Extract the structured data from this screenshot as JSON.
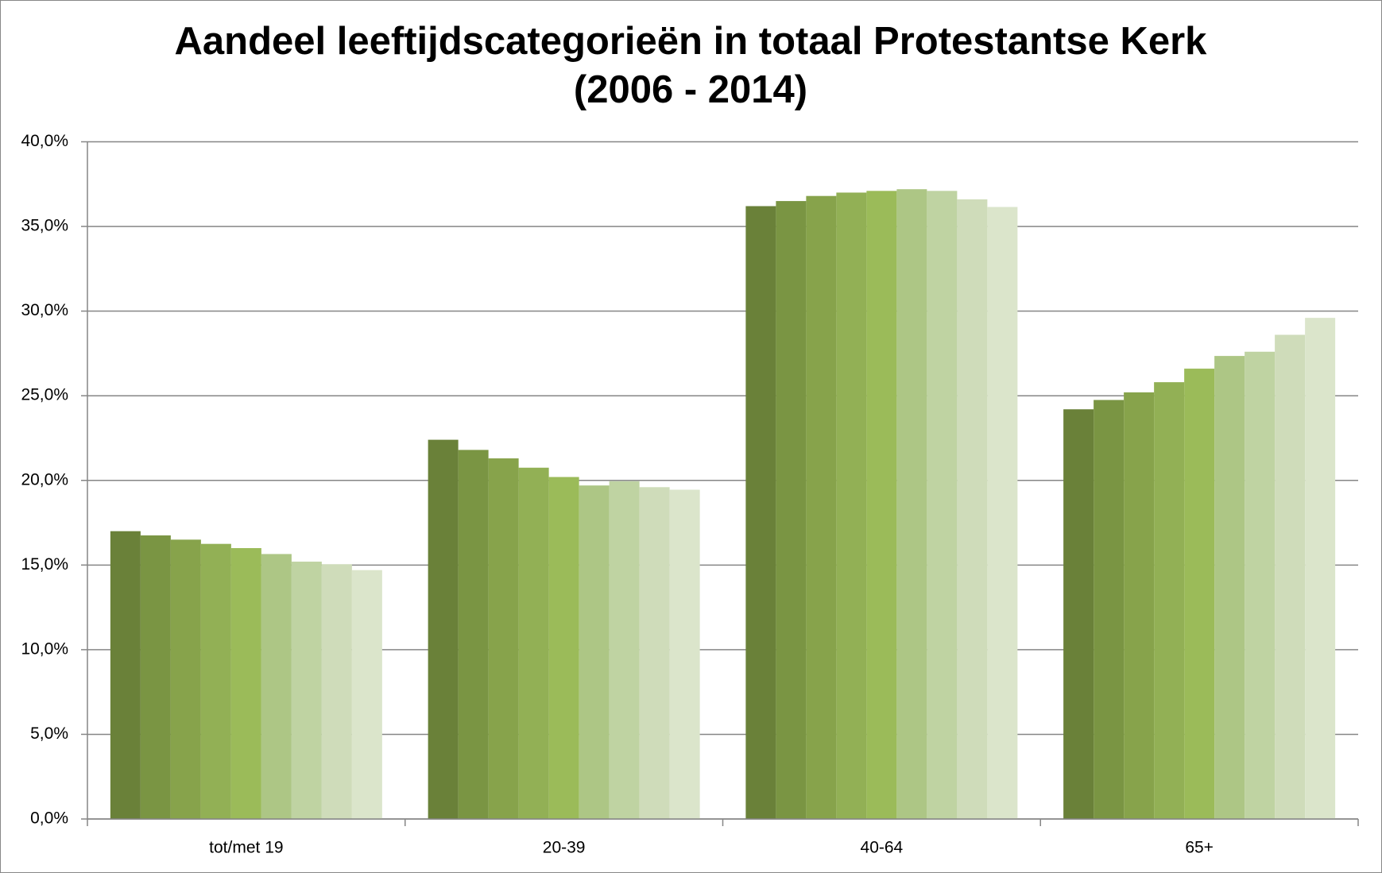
{
  "chart_data": {
    "type": "bar",
    "title": "Aandeel leeftijdscategorieën in totaal Protestantse Kerk (2006 - 2014)",
    "categories": [
      "tot/met 19",
      "20-39",
      "40-64",
      "65+"
    ],
    "series": [
      {
        "color": "#6a8139",
        "values": [
          17.0,
          22.4,
          36.2,
          24.2
        ]
      },
      {
        "color": "#7a9543",
        "values": [
          16.75,
          21.8,
          36.5,
          24.75
        ]
      },
      {
        "color": "#87a34b",
        "values": [
          16.5,
          21.3,
          36.8,
          25.2
        ]
      },
      {
        "color": "#92b055",
        "values": [
          16.25,
          20.75,
          37.0,
          25.8
        ]
      },
      {
        "color": "#9bbb59",
        "values": [
          16.0,
          20.2,
          37.1,
          26.6
        ]
      },
      {
        "color": "#adc685",
        "values": [
          15.65,
          19.7,
          37.2,
          27.35
        ]
      },
      {
        "color": "#bfd3a2",
        "values": [
          15.2,
          19.95,
          37.1,
          27.6
        ]
      },
      {
        "color": "#cfdcba",
        "values": [
          15.05,
          19.6,
          36.6,
          28.6
        ]
      },
      {
        "color": "#dbe5cb",
        "values": [
          14.7,
          19.45,
          36.15,
          29.6
        ]
      }
    ],
    "ylim": [
      0,
      40
    ],
    "yticks": [
      {
        "value": 0,
        "label": "0,0%"
      },
      {
        "value": 5,
        "label": "5,0%"
      },
      {
        "value": 10,
        "label": "10,0%"
      },
      {
        "value": 15,
        "label": "15,0%"
      },
      {
        "value": 20,
        "label": "20,0%"
      },
      {
        "value": 25,
        "label": "25,0%"
      },
      {
        "value": 30,
        "label": "30,0%"
      },
      {
        "value": 35,
        "label": "35,0%"
      },
      {
        "value": 40,
        "label": "40,0%"
      }
    ],
    "grid": true
  }
}
